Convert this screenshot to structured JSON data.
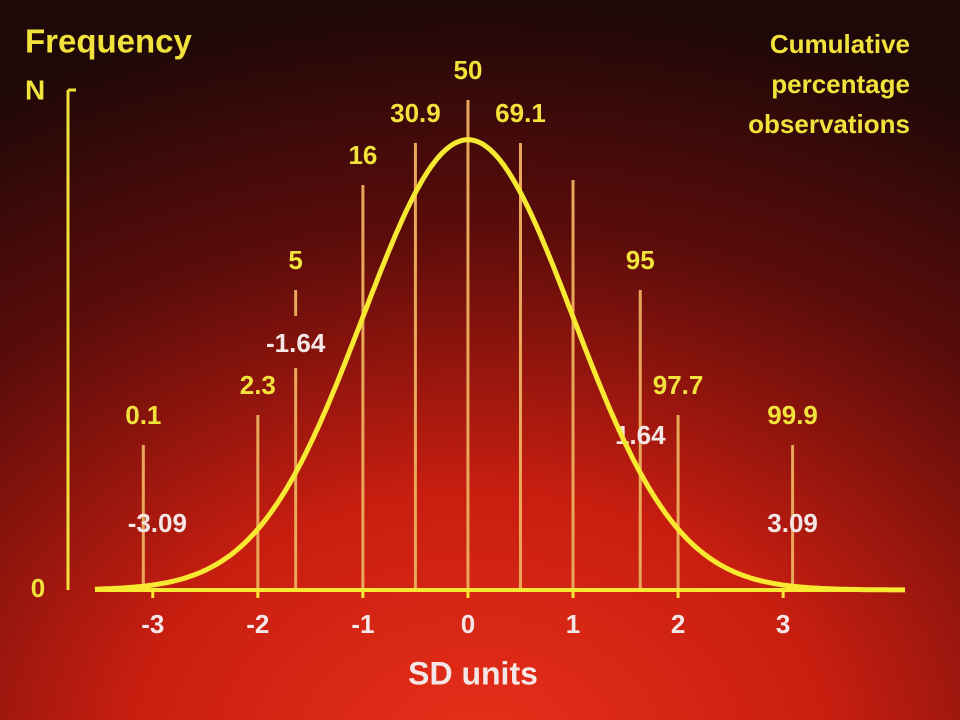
{
  "chart_data": {
    "type": "normal",
    "y_label": "Frequency",
    "y_symbol": "N",
    "y2_label": [
      "Cumulative",
      "percentage",
      "observations"
    ],
    "x_label": "SD units",
    "x": [
      -3.09,
      -2,
      -1.64,
      -1,
      -0.5,
      0,
      0.5,
      1,
      1.64,
      2,
      3.09
    ],
    "values": [
      0.1,
      2.3,
      5,
      16,
      30.9,
      50,
      69.1,
      null,
      95,
      97.7,
      99.9
    ],
    "xlim": [
      -3.55,
      4.16
    ],
    "xticks": [
      -3,
      -2,
      -1,
      0,
      1,
      2,
      3
    ],
    "ylim": [
      0,
      0.443
    ],
    "yticks": [
      0
    ],
    "curve_color": "#f7e832",
    "line_color": "#e9a75a"
  }
}
